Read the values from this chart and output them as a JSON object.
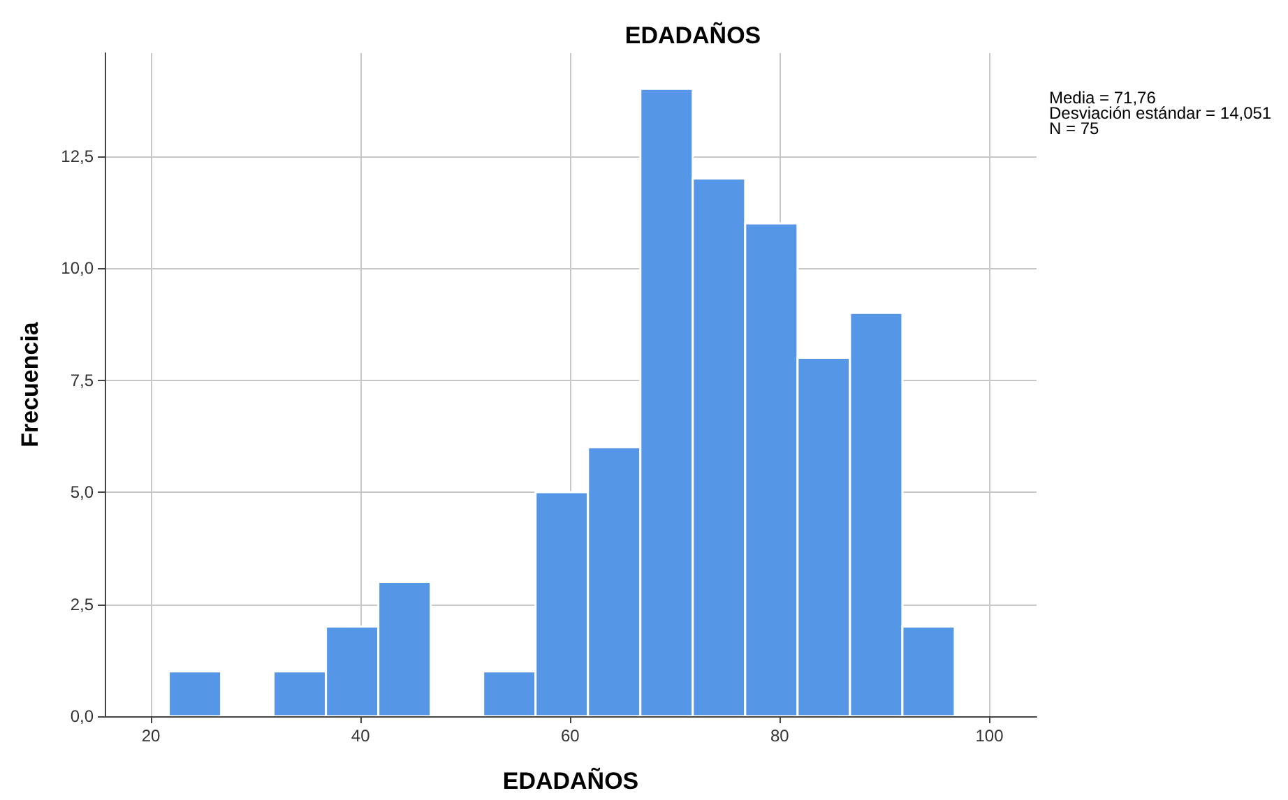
{
  "chart_data": {
    "type": "histogram",
    "title": "EDADAÑOS",
    "xlabel": "EDADAÑOS",
    "ylabel": "Frecuencia",
    "bins": [
      21.7,
      26.7,
      31.7,
      36.7,
      41.7,
      46.7,
      51.7,
      56.7,
      61.7,
      66.7,
      71.7,
      76.7,
      81.7,
      86.7,
      91.7,
      96.7
    ],
    "values": [
      1,
      0,
      1,
      2,
      3,
      0,
      1,
      5,
      6,
      14,
      12,
      11,
      8,
      9,
      2
    ],
    "color": "#5596e6",
    "xlim": [
      15.6,
      104.5
    ],
    "xticks": [
      20,
      40,
      60,
      80,
      100
    ],
    "ylim": [
      0,
      14.8
    ],
    "yticks": [
      {
        "value": 0,
        "label": "0,0"
      },
      {
        "value": 2.5,
        "label": "2,5"
      },
      {
        "value": 5,
        "label": "5,0"
      },
      {
        "value": 7.5,
        "label": "7,5"
      },
      {
        "value": 10,
        "label": "10,0"
      },
      {
        "value": 12.5,
        "label": "12,5"
      }
    ],
    "grid": true,
    "annotations": [
      "Media = 71,76",
      "Desviación estándar = 14,051",
      "N = 75"
    ]
  }
}
